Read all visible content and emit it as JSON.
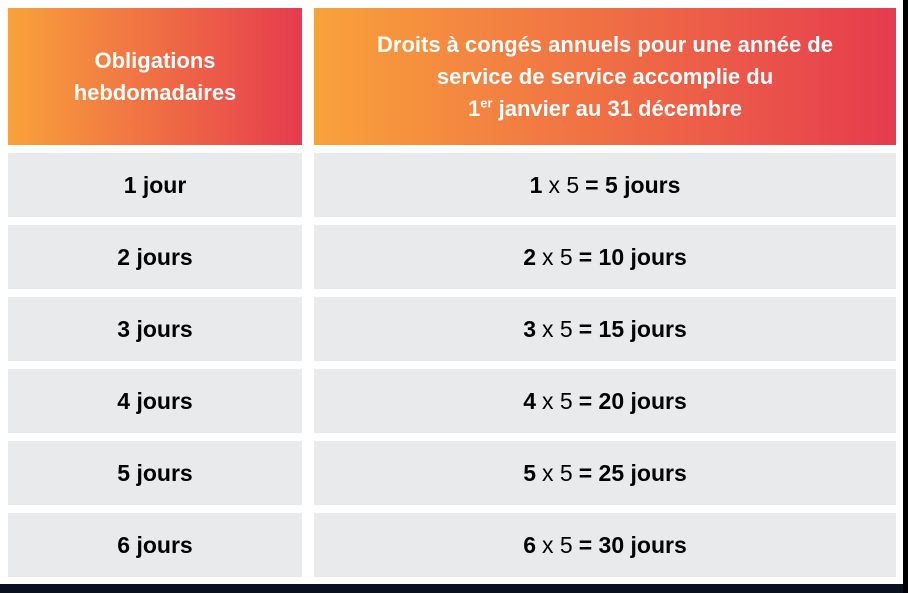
{
  "table": {
    "header_obligations": {
      "line1": "Obligations",
      "line2": "hebdomadaires"
    },
    "header_droits": {
      "line1": "Droits à congés annuels pour une année de",
      "line2": "service de service accomplie du",
      "line3_num": "1",
      "line3_sup": "er",
      "line3_rest": " janvier au 31 décembre"
    },
    "rows": [
      {
        "obligation": "1 jour",
        "factor": "1",
        "middle": "x 5",
        "result": "= 5 jours"
      },
      {
        "obligation": "2 jours",
        "factor": "2",
        "middle": "x 5",
        "result": "= 10 jours"
      },
      {
        "obligation": "3 jours",
        "factor": "3",
        "middle": "x 5",
        "result": "= 15 jours"
      },
      {
        "obligation": "4 jours",
        "factor": "4",
        "middle": "x 5",
        "result": "= 20 jours"
      },
      {
        "obligation": "5 jours",
        "factor": "5",
        "middle": "x 5",
        "result": "= 25 jours"
      },
      {
        "obligation": "6 jours",
        "factor": "6",
        "middle": "x 5",
        "result": "= 30 jours"
      }
    ]
  },
  "colors": {
    "header_gradient_start": "#F9A23B",
    "header_gradient_end": "#E63B4E",
    "row_bg": "#E9EAEC",
    "footer_bar": "#0B101E",
    "right_edge": "#000000",
    "header_text": "#FFFFFF",
    "row_text": "#000000"
  }
}
